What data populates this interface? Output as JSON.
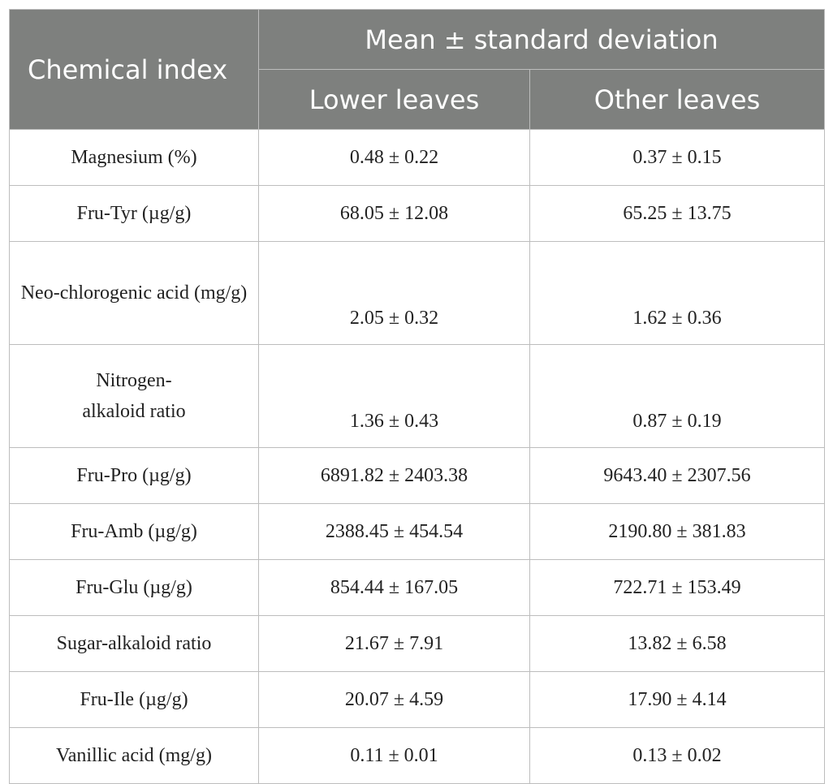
{
  "header": {
    "chemical_index": "Chemical index",
    "mean_sd": "Mean ± standard deviation",
    "lower_leaves": "Lower leaves",
    "other_leaves": "Other leaves"
  },
  "rows": [
    {
      "name": "Magnesium (%)",
      "lower": "0.48 ± 0.22",
      "other": "0.37 ± 0.15"
    },
    {
      "name": "Fru-Tyr (µg/g)",
      "lower": "68.05 ± 12.08",
      "other": "65.25 ± 13.75"
    },
    {
      "name": "Neo-chlorogenic acid (mg/g)",
      "lower": "2.05 ± 0.32",
      "other": "1.62 ± 0.36"
    },
    {
      "name": "Nitrogen-alkaloid ratio",
      "lower": "1.36 ± 0.43",
      "other": "0.87 ± 0.19"
    },
    {
      "name": "Fru-Pro (µg/g)",
      "lower": "6891.82 ± 2403.38",
      "other": "9643.40 ± 2307.56"
    },
    {
      "name": "Fru-Amb (µg/g)",
      "lower": "2388.45 ± 454.54",
      "other": "2190.80 ± 381.83"
    },
    {
      "name": "Fru-Glu (µg/g)",
      "lower": "854.44 ± 167.05",
      "other": "722.71 ± 153.49"
    },
    {
      "name": "Sugar-alkaloid ratio",
      "lower": "21.67 ± 7.91",
      "other": "13.82 ± 6.58"
    },
    {
      "name": "Fru-Ile (µg/g)",
      "lower": "20.07 ± 4.59",
      "other": "17.90 ± 4.14"
    },
    {
      "name": "Vanillic acid (mg/g)",
      "lower": "0.11 ± 0.01",
      "other": "0.13 ± 0.02"
    }
  ]
}
